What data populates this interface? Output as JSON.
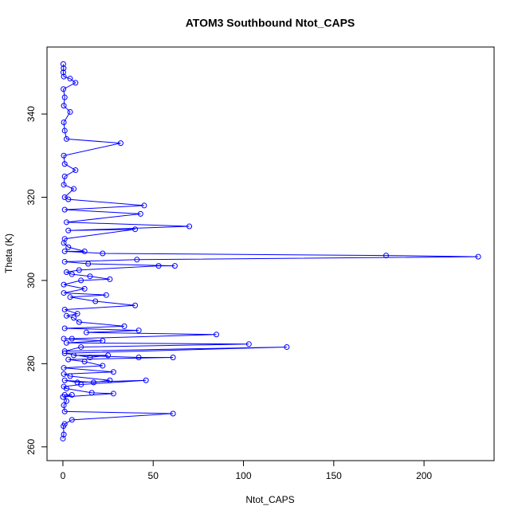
{
  "chart_data": {
    "type": "line",
    "title": "ATOM3 Southbound Ntot_CAPS",
    "x_label": "Ntot_CAPS",
    "y_label": "Theta (K)",
    "color": "#0000ff",
    "markers": "open-circle",
    "x": [
      0,
      0.5,
      0.3,
      1,
      5,
      61,
      1,
      0.5,
      2,
      1,
      5,
      0,
      28,
      16,
      2,
      0.5,
      10,
      46,
      8,
      1,
      17,
      26,
      4,
      0.5,
      28,
      0.5,
      22,
      12,
      3,
      61,
      42,
      6,
      25,
      15,
      1,
      124,
      1,
      10,
      103,
      2,
      22,
      0.5,
      5,
      85,
      13,
      42,
      1,
      34,
      9,
      6,
      2,
      8,
      1,
      40,
      18,
      4,
      24,
      0.5,
      12,
      0.5,
      10,
      26,
      15,
      5,
      2,
      9,
      53,
      62,
      14,
      1,
      41,
      230,
      179,
      22,
      1,
      12,
      3,
      0.5,
      1,
      40,
      3,
      70,
      2,
      43,
      1,
      45,
      3,
      1,
      6,
      0.5,
      1,
      7,
      1,
      0.5,
      32,
      2,
      1,
      0.5,
      4,
      0.5,
      1,
      0.3,
      7,
      4,
      0.5,
      0.2,
      0.4,
      0.2
    ],
    "values": [
      262,
      263,
      265,
      265.5,
      266.5,
      268,
      268.5,
      270,
      271,
      272.5,
      272.5,
      272,
      272.8,
      273,
      274,
      274.5,
      275,
      276,
      275.5,
      276,
      275.5,
      276,
      277,
      277.5,
      278,
      279,
      279.5,
      280.5,
      281,
      281.5,
      281.5,
      282,
      282,
      281.5,
      282.5,
      284,
      283,
      284,
      284.7,
      285,
      285.5,
      286,
      286,
      287,
      287.5,
      288,
      288.5,
      289,
      290,
      291,
      291.5,
      292,
      293,
      294,
      295,
      296,
      296.5,
      297,
      298,
      299,
      300,
      300.3,
      301,
      301.5,
      302,
      302.5,
      303.5,
      303.5,
      304,
      304.5,
      305,
      305.7,
      306,
      306.5,
      307,
      307,
      308,
      309,
      310,
      312.3,
      312,
      313,
      314,
      316,
      317,
      318,
      319.5,
      320,
      322,
      323,
      325,
      326.5,
      328,
      330,
      333,
      334,
      336,
      338,
      340.5,
      342,
      344,
      346,
      347.5,
      348.5,
      349,
      350,
      351,
      352
    ],
    "xlim": [
      -8.8,
      238.8
    ],
    "ylim": [
      256.7,
      356.1
    ],
    "xticks": [
      0,
      50,
      100,
      150,
      200
    ],
    "yticks": [
      260,
      280,
      300,
      320,
      340
    ]
  }
}
